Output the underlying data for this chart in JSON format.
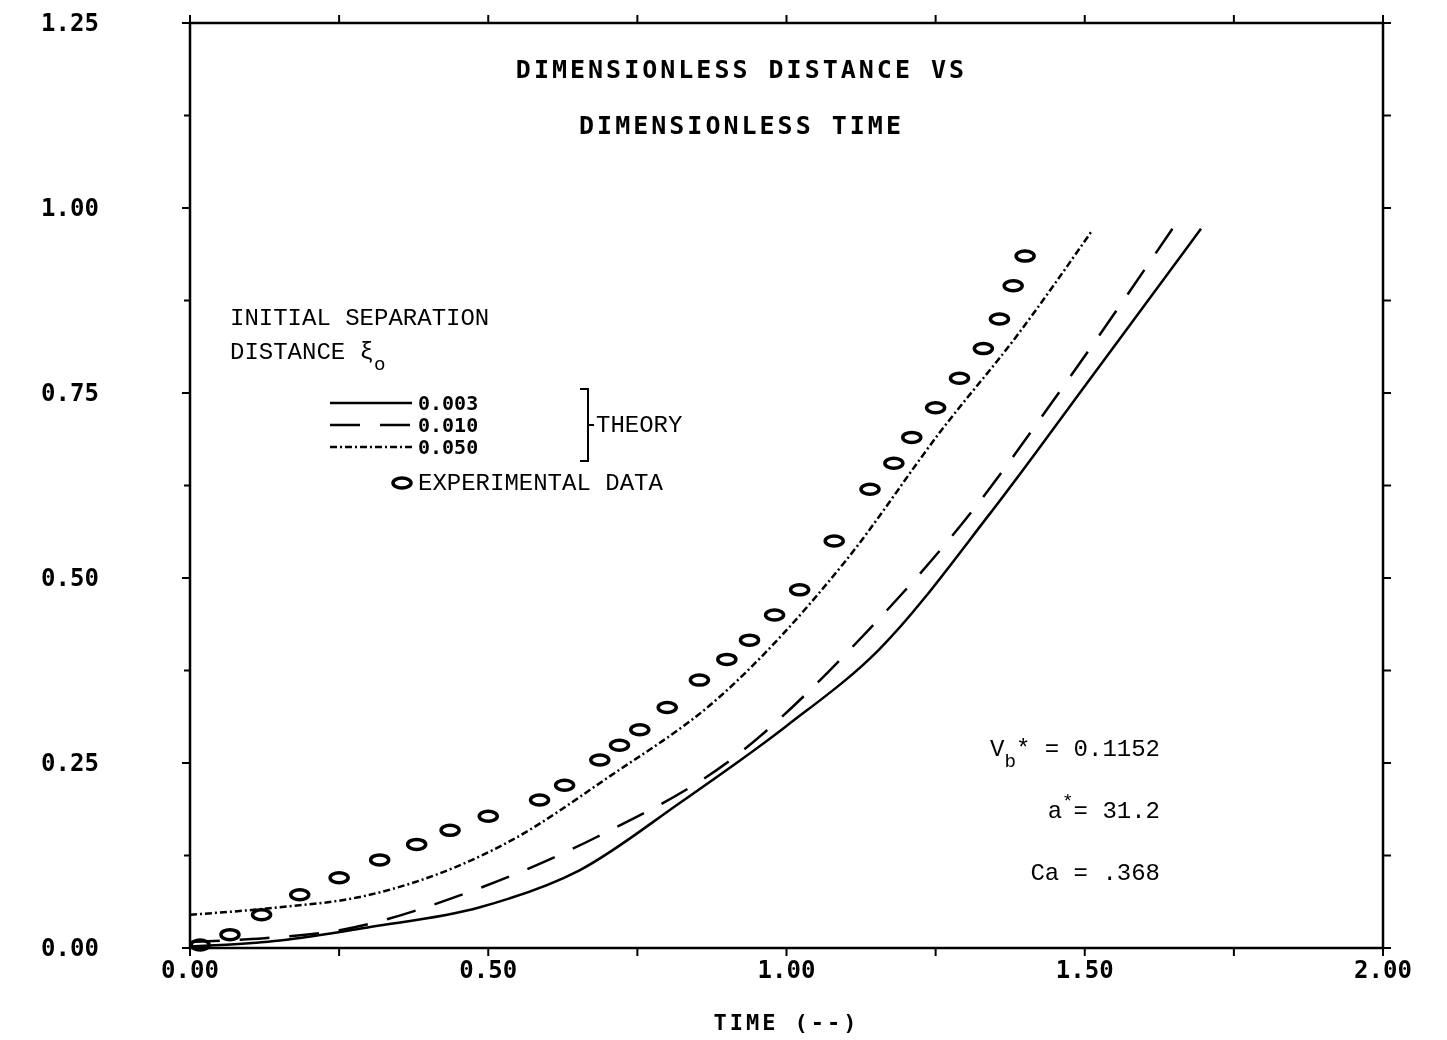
{
  "chart_data": {
    "type": "line",
    "title": "DIMENSIONLESS DISTANCE VS\nDIMENSIONLESS TIME",
    "xlabel": "TIME (--)",
    "legend_title": "INITIAL SEPARATION\nDISTANCE    ξ$_{o}$",
    "legend": "top left",
    "annotations": [
      "THEORY",
      "V$_{b}$* = 0.1152",
      "a$^{*}$= 31.2",
      "Ca = .368"
    ],
    "xlim": [
      0,
      2
    ],
    "ylim": [
      0,
      1.25
    ],
    "xticks": [
      {
        "value": 0,
        "label": "0.00"
      },
      {
        "value": 0.25,
        "label": null
      },
      {
        "value": 0.5,
        "label": "0.50"
      },
      {
        "value": 0.75,
        "label": null
      },
      {
        "value": 1,
        "label": "1.00"
      },
      {
        "value": 1.25,
        "label": null
      },
      {
        "value": 1.5,
        "label": "1.50"
      },
      {
        "value": 1.75,
        "label": null
      },
      {
        "value": 2,
        "label": "2.00"
      }
    ],
    "yticks": [
      {
        "value": 0,
        "label": "0.00"
      },
      {
        "value": 0.125,
        "label": null
      },
      {
        "value": 0.25,
        "label": "0.25"
      },
      {
        "value": 0.375,
        "label": null
      },
      {
        "value": 0.5,
        "label": "0.50"
      },
      {
        "value": 0.625,
        "label": null
      },
      {
        "value": 0.75,
        "label": "0.75"
      },
      {
        "value": 0.875,
        "label": null
      },
      {
        "value": 1,
        "label": "1.00"
      },
      {
        "value": 1.125,
        "label": null
      },
      {
        "value": 1.25,
        "label": "1.25"
      }
    ],
    "series": [
      {
        "name": "0.003",
        "type": "line",
        "line_style": "solid",
        "color": "#000000",
        "x": [
          0,
          0.151,
          0.3,
          0.486,
          0.653,
          0.821,
          1.0,
          1.156,
          1.343,
          1.508,
          1.695
        ],
        "values": [
          0.002,
          0.01,
          0.028,
          0.055,
          0.105,
          0.196,
          0.3,
          0.404,
          0.589,
          0.768,
          0.972
        ]
      },
      {
        "name": "0.010",
        "type": "line",
        "line_style": "dashed",
        "color": "#000000",
        "x": [
          0,
          0.12,
          0.251,
          0.469,
          0.682,
          0.911,
          1.139,
          1.303,
          1.466,
          1.647
        ],
        "values": [
          0.008,
          0.013,
          0.024,
          0.076,
          0.15,
          0.257,
          0.431,
          0.582,
          0.761,
          0.972
        ]
      },
      {
        "name": "0.050",
        "type": "line",
        "line_style": "dotted",
        "color": "#000000",
        "x": [
          0,
          0.15,
          0.285,
          0.54,
          0.7,
          0.886,
          1.099,
          1.261,
          1.385,
          1.511
        ],
        "values": [
          0.045,
          0.055,
          0.069,
          0.146,
          0.23,
          0.338,
          0.523,
          0.701,
          0.826,
          0.968
        ]
      },
      {
        "name": "EXPERIMENTAL DATA",
        "type": "scatter",
        "marker": "circle",
        "color": "#000000",
        "x": [
          0.017,
          0.067,
          0.12,
          0.184,
          0.25,
          0.318,
          0.38,
          0.436,
          0.5,
          0.586,
          0.628,
          0.687,
          0.72,
          0.754,
          0.8,
          0.854,
          0.9,
          0.938,
          0.98,
          1.022,
          1.08,
          1.14,
          1.18,
          1.21,
          1.25,
          1.29,
          1.33,
          1.357,
          1.38,
          1.4
        ],
        "values": [
          0.004,
          0.018,
          0.045,
          0.072,
          0.095,
          0.119,
          0.14,
          0.159,
          0.178,
          0.2,
          0.22,
          0.254,
          0.274,
          0.295,
          0.325,
          0.362,
          0.39,
          0.416,
          0.45,
          0.484,
          0.55,
          0.62,
          0.655,
          0.69,
          0.73,
          0.77,
          0.81,
          0.85,
          0.895,
          0.935
        ]
      }
    ]
  }
}
